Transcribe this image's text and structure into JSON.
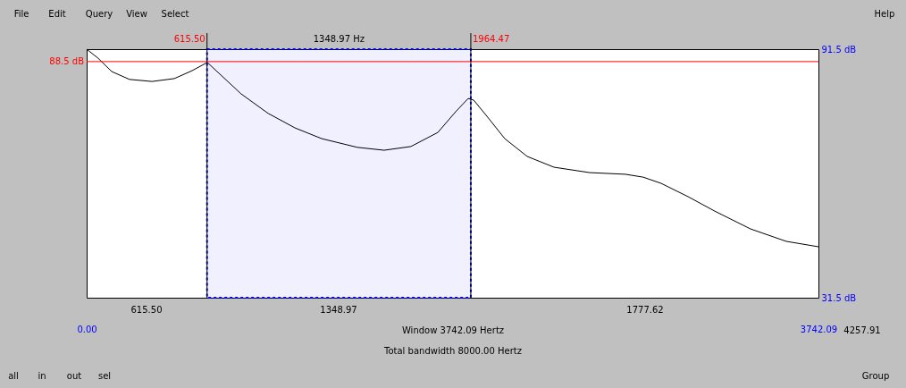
{
  "chart_data": {
    "type": "line",
    "x": [
      0,
      59,
      128,
      219,
      334,
      448,
      539,
      617,
      676,
      790,
      928,
      1065,
      1202,
      1384,
      1521,
      1658,
      1796,
      1887,
      1951,
      1979,
      2047,
      2138,
      2253,
      2390,
      2572,
      2755,
      2846,
      2938,
      3075,
      3212,
      3395,
      3578,
      3742.09
    ],
    "series": [
      {
        "color": "#000000",
        "values": [
          91.5,
          89.3,
          86.1,
          84.2,
          83.7,
          84.4,
          86.3,
          88.3,
          85.7,
          80.7,
          76.0,
          72.5,
          69.9,
          67.8,
          67.1,
          68.0,
          71.4,
          76.4,
          79.6,
          79.2,
          75.3,
          69.9,
          65.6,
          63.0,
          61.7,
          61.3,
          60.6,
          59.1,
          55.9,
          52.4,
          48.1,
          45.1,
          43.8
        ]
      }
    ],
    "xlim": [
      0,
      3742.09
    ],
    "xticks": [
      {
        "value": 0,
        "label": "0.00"
      },
      {
        "value": 3742.09,
        "label": "3742.09"
      }
    ],
    "ylim": [
      31.5,
      91.5
    ],
    "yticks": [
      {
        "value": 31.5,
        "label": "31.5 dB"
      },
      {
        "value": 91.5,
        "label": "91.5 dB"
      }
    ],
    "grid": false,
    "marker": "none",
    "line_style": "solid",
    "ref_lines": [
      {
        "axis": "y",
        "value": 88.5,
        "label": "88.5 dB",
        "color": "#ff0000"
      },
      {
        "axis": "x",
        "value": 615.5,
        "label": "615.50",
        "color": "#000000"
      },
      {
        "axis": "x",
        "value": 1964.47,
        "label": "1964.47",
        "color": "#000000"
      }
    ],
    "bands": [
      {
        "axis": "x",
        "from": 615.5,
        "to": 1964.47,
        "label": "1348.97 Hz",
        "color": "#0000ff"
      }
    ],
    "annotations": [
      "File",
      "Edit",
      "Query",
      "View",
      "Select",
      "Help",
      "615.50",
      "1348.97",
      "1777.62",
      "Window 3742.09 Hertz",
      "Total bandwidth 8000.00 Hertz",
      "4257.91",
      "all",
      "in",
      "out",
      "sel",
      "Group"
    ]
  }
}
